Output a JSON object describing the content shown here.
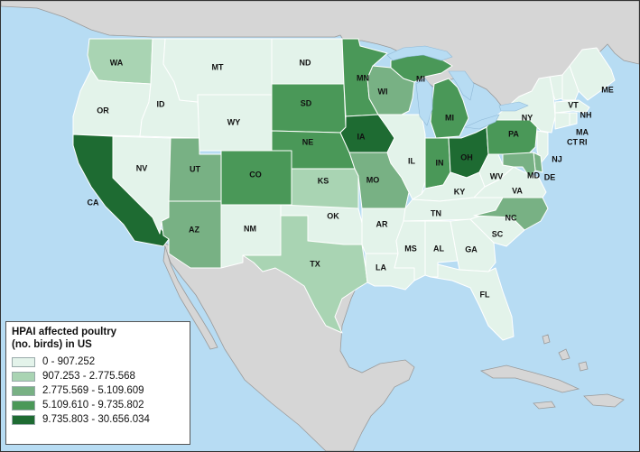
{
  "legend": {
    "title_line1": "HPAI affected poultry",
    "title_line2": "(no. birds) in US",
    "classes": [
      {
        "label": "0 - 907.252",
        "color": "#e3f3ea"
      },
      {
        "label": "907.253 - 2.775.568",
        "color": "#a9d4b3"
      },
      {
        "label": "2.775.569 - 5.109.609",
        "color": "#78b184"
      },
      {
        "label": "5.109.610 - 9.735.802",
        "color": "#4a9858"
      },
      {
        "label": "9.735.803 - 30.656.034",
        "color": "#1e6b32"
      }
    ]
  },
  "states": [
    {
      "abbr": "WA",
      "class": 1
    },
    {
      "abbr": "OR",
      "class": 0
    },
    {
      "abbr": "CA",
      "class": 4
    },
    {
      "abbr": "ID",
      "class": 0
    },
    {
      "abbr": "NV",
      "class": 0
    },
    {
      "abbr": "AZ",
      "class": 2
    },
    {
      "abbr": "UT",
      "class": 2
    },
    {
      "abbr": "MT",
      "class": 0
    },
    {
      "abbr": "WY",
      "class": 0
    },
    {
      "abbr": "CO",
      "class": 3
    },
    {
      "abbr": "NM",
      "class": 0
    },
    {
      "abbr": "ND",
      "class": 0
    },
    {
      "abbr": "SD",
      "class": 3
    },
    {
      "abbr": "NE",
      "class": 3
    },
    {
      "abbr": "KS",
      "class": 1
    },
    {
      "abbr": "OK",
      "class": 0
    },
    {
      "abbr": "TX",
      "class": 1
    },
    {
      "abbr": "MN",
      "class": 3
    },
    {
      "abbr": "IA",
      "class": 4
    },
    {
      "abbr": "MO",
      "class": 2
    },
    {
      "abbr": "AR",
      "class": 0
    },
    {
      "abbr": "LA",
      "class": 0
    },
    {
      "abbr": "WI",
      "class": 2
    },
    {
      "abbr": "IL",
      "class": 0
    },
    {
      "abbr": "MI",
      "class": 3
    },
    {
      "abbr": "IN",
      "class": 3
    },
    {
      "abbr": "OH",
      "class": 4
    },
    {
      "abbr": "KY",
      "class": 0
    },
    {
      "abbr": "TN",
      "class": 0
    },
    {
      "abbr": "MS",
      "class": 0
    },
    {
      "abbr": "AL",
      "class": 0
    },
    {
      "abbr": "GA",
      "class": 0
    },
    {
      "abbr": "FL",
      "class": 0
    },
    {
      "abbr": "SC",
      "class": 0
    },
    {
      "abbr": "NC",
      "class": 2
    },
    {
      "abbr": "VA",
      "class": 0
    },
    {
      "abbr": "WV",
      "class": 0
    },
    {
      "abbr": "PA",
      "class": 3
    },
    {
      "abbr": "NY",
      "class": 0
    },
    {
      "abbr": "VT",
      "class": 0
    },
    {
      "abbr": "NH",
      "class": 0
    },
    {
      "abbr": "ME",
      "class": 0
    },
    {
      "abbr": "MA",
      "class": 0
    },
    {
      "abbr": "CT",
      "class": 0
    },
    {
      "abbr": "RI",
      "class": 0
    },
    {
      "abbr": "NJ",
      "class": 0
    },
    {
      "abbr": "DE",
      "class": 2
    },
    {
      "abbr": "MD",
      "class": 2
    },
    {
      "abbr": "MI",
      "class": 3
    }
  ],
  "colors": {
    "water": "#b7dcf3",
    "foreign_land": "#d6d6d6"
  }
}
